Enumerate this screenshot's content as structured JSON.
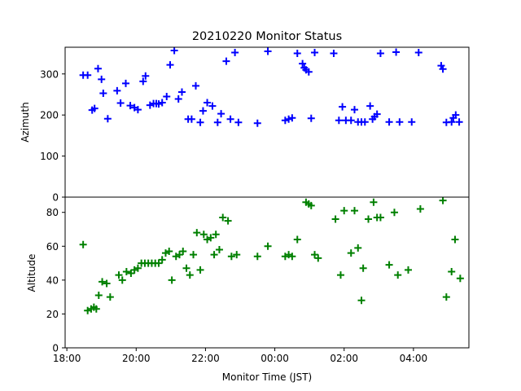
{
  "chart_data": {
    "type": "scatter",
    "title": "20210220 Monitor Status",
    "xlabel": "Monitor Time (JST)",
    "x_tick_labels": [
      "18:00",
      "20:00",
      "22:00",
      "00:00",
      "02:00",
      "04:00"
    ],
    "x_ticks_hours": [
      18,
      20,
      22,
      24,
      26,
      28
    ],
    "xlim_hours": [
      17.95,
      29.6
    ],
    "marker": "plus",
    "panels": [
      {
        "name": "azimuth",
        "ylabel": "Azimuth",
        "ylim": [
          0,
          365
        ],
        "y_ticks": [
          0,
          100,
          200,
          300
        ],
        "color": "#0000ff",
        "points": [
          [
            18.47,
            297
          ],
          [
            18.6,
            297
          ],
          [
            18.73,
            212
          ],
          [
            18.8,
            216
          ],
          [
            18.9,
            313
          ],
          [
            19.0,
            287
          ],
          [
            19.05,
            253
          ],
          [
            19.18,
            191
          ],
          [
            19.45,
            259
          ],
          [
            19.55,
            229
          ],
          [
            19.7,
            277
          ],
          [
            19.83,
            223
          ],
          [
            19.95,
            218
          ],
          [
            20.05,
            213
          ],
          [
            20.2,
            282
          ],
          [
            20.27,
            295
          ],
          [
            20.4,
            224
          ],
          [
            20.5,
            228
          ],
          [
            20.58,
            228
          ],
          [
            20.65,
            227
          ],
          [
            20.75,
            230
          ],
          [
            20.88,
            245
          ],
          [
            20.98,
            322
          ],
          [
            21.1,
            357
          ],
          [
            21.22,
            239
          ],
          [
            21.32,
            256
          ],
          [
            21.5,
            190
          ],
          [
            21.6,
            190
          ],
          [
            21.72,
            271
          ],
          [
            21.85,
            182
          ],
          [
            21.93,
            210
          ],
          [
            22.05,
            230
          ],
          [
            22.2,
            222
          ],
          [
            22.35,
            182
          ],
          [
            22.45,
            203
          ],
          [
            22.6,
            331
          ],
          [
            22.72,
            190
          ],
          [
            22.85,
            352
          ],
          [
            22.95,
            182
          ],
          [
            23.5,
            180
          ],
          [
            23.8,
            355
          ],
          [
            24.3,
            187
          ],
          [
            24.4,
            190
          ],
          [
            24.5,
            193
          ],
          [
            24.65,
            350
          ],
          [
            24.8,
            325
          ],
          [
            24.85,
            315
          ],
          [
            24.9,
            310
          ],
          [
            24.98,
            305
          ],
          [
            25.05,
            192
          ],
          [
            25.15,
            352
          ],
          [
            25.7,
            350
          ],
          [
            25.85,
            187
          ],
          [
            25.95,
            220
          ],
          [
            26.05,
            187
          ],
          [
            26.2,
            187
          ],
          [
            26.3,
            213
          ],
          [
            26.4,
            183
          ],
          [
            26.5,
            183
          ],
          [
            26.6,
            183
          ],
          [
            26.75,
            222
          ],
          [
            26.82,
            190
          ],
          [
            26.88,
            196
          ],
          [
            26.95,
            202
          ],
          [
            27.05,
            350
          ],
          [
            27.3,
            183
          ],
          [
            27.5,
            353
          ],
          [
            27.6,
            183
          ],
          [
            27.95,
            183
          ],
          [
            28.15,
            352
          ],
          [
            28.8,
            320
          ],
          [
            28.85,
            312
          ],
          [
            28.95,
            182
          ],
          [
            29.1,
            183
          ],
          [
            29.15,
            193
          ],
          [
            29.22,
            200
          ],
          [
            29.32,
            183
          ]
        ]
      },
      {
        "name": "altitude",
        "ylabel": "Altitude",
        "ylim": [
          0,
          89
        ],
        "y_ticks": [
          0,
          20,
          40,
          60,
          80
        ],
        "color": "#008000",
        "points": [
          [
            18.47,
            61
          ],
          [
            18.6,
            22
          ],
          [
            18.7,
            23
          ],
          [
            18.78,
            24
          ],
          [
            18.85,
            23
          ],
          [
            18.92,
            31
          ],
          [
            19.02,
            39
          ],
          [
            19.15,
            38
          ],
          [
            19.25,
            30
          ],
          [
            19.5,
            43
          ],
          [
            19.6,
            40
          ],
          [
            19.72,
            45
          ],
          [
            19.85,
            44
          ],
          [
            19.95,
            46
          ],
          [
            20.05,
            47
          ],
          [
            20.15,
            50
          ],
          [
            20.25,
            50
          ],
          [
            20.35,
            50
          ],
          [
            20.45,
            50
          ],
          [
            20.55,
            50
          ],
          [
            20.65,
            50
          ],
          [
            20.75,
            52
          ],
          [
            20.85,
            56
          ],
          [
            20.95,
            57
          ],
          [
            21.03,
            40
          ],
          [
            21.15,
            54
          ],
          [
            21.25,
            55
          ],
          [
            21.35,
            57
          ],
          [
            21.45,
            47
          ],
          [
            21.55,
            43
          ],
          [
            21.65,
            55
          ],
          [
            21.75,
            68
          ],
          [
            21.85,
            46
          ],
          [
            21.95,
            67
          ],
          [
            22.05,
            64
          ],
          [
            22.15,
            65
          ],
          [
            22.25,
            55
          ],
          [
            22.3,
            67
          ],
          [
            22.4,
            58
          ],
          [
            22.5,
            77
          ],
          [
            22.65,
            75
          ],
          [
            22.75,
            54
          ],
          [
            22.9,
            55
          ],
          [
            23.5,
            54
          ],
          [
            23.8,
            60
          ],
          [
            24.3,
            54
          ],
          [
            24.4,
            55
          ],
          [
            24.5,
            54
          ],
          [
            24.65,
            64
          ],
          [
            24.9,
            86
          ],
          [
            24.98,
            85
          ],
          [
            25.05,
            84
          ],
          [
            25.15,
            55
          ],
          [
            25.25,
            53
          ],
          [
            25.75,
            76
          ],
          [
            25.9,
            43
          ],
          [
            26.0,
            81
          ],
          [
            26.2,
            56
          ],
          [
            26.3,
            81
          ],
          [
            26.4,
            59
          ],
          [
            26.5,
            28
          ],
          [
            26.55,
            47
          ],
          [
            26.7,
            76
          ],
          [
            26.85,
            86
          ],
          [
            26.95,
            77
          ],
          [
            27.05,
            77
          ],
          [
            27.3,
            49
          ],
          [
            27.45,
            80
          ],
          [
            27.55,
            43
          ],
          [
            27.85,
            46
          ],
          [
            28.2,
            82
          ],
          [
            28.85,
            87
          ],
          [
            28.95,
            30
          ],
          [
            29.1,
            45
          ],
          [
            29.2,
            64
          ],
          [
            29.35,
            41
          ]
        ]
      }
    ]
  }
}
